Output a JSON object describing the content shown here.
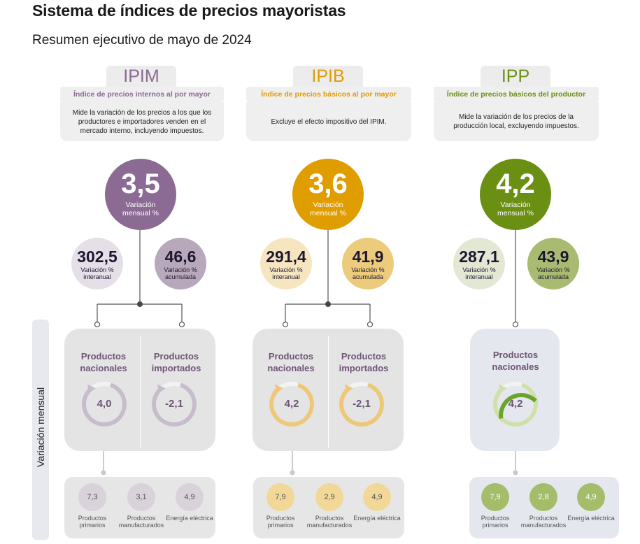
{
  "header": {
    "title": "Sistema de índices de precios mayoristas",
    "subtitle": "Resumen ejecutivo de mayo de 2024"
  },
  "side_label": "Variación mensual",
  "colors": {
    "ipim": "#8b6a93",
    "ipim_light": "#d7cfd9",
    "ipib": "#e09d00",
    "ipib_light": "#f0d79d",
    "ipp": "#6b8f12",
    "ipp_light": "#d1dfa6"
  },
  "indices": [
    {
      "code": "IPIM",
      "name": "Índice de precios internos al por mayor",
      "description": "Mide la variación de los precios a los que los productores e importadores venden en el mercado interno, incluyendo impuestos.",
      "monthly": {
        "value": "3,5",
        "label": "Variación mensual %"
      },
      "interannual": {
        "value": "302,5",
        "label": "Variación % interanual"
      },
      "accumulated": {
        "value": "46,6",
        "label": "Variación % acumulada"
      },
      "products": [
        {
          "label": "Productos nacionales",
          "value": "4,0",
          "fill": 0.55
        },
        {
          "label": "Productos importados",
          "value": "-2,1",
          "fill": 0.55
        }
      ],
      "breakdown": [
        {
          "value": "7,3",
          "label": "Productos primarios"
        },
        {
          "value": "3,1",
          "label": "Productos manufacturados"
        },
        {
          "value": "4,9",
          "label": "Energía eléctrica"
        }
      ]
    },
    {
      "code": "IPIB",
      "name": "Índice de precios básicos al por mayor",
      "description": "Excluye el efecto impositivo del IPIM.",
      "monthly": {
        "value": "3,6",
        "label": "Variación mensual %"
      },
      "interannual": {
        "value": "291,4",
        "label": "Variación % interanual"
      },
      "accumulated": {
        "value": "41,9",
        "label": "Variación % acumulada"
      },
      "products": [
        {
          "label": "Productos nacionales",
          "value": "4,2",
          "fill": 0.6
        },
        {
          "label": "Productos importados",
          "value": "-2,1",
          "fill": 0.55
        }
      ],
      "breakdown": [
        {
          "value": "7,9",
          "label": "Productos primarios"
        },
        {
          "value": "2,9",
          "label": "Productos manufacturados"
        },
        {
          "value": "4,9",
          "label": "Energía eléctrica"
        }
      ]
    },
    {
      "code": "IPP",
      "name": "Índice de precios básicos del productor",
      "description": "Mide la variación de los precios de la producción local, excluyendo impuestos.",
      "monthly": {
        "value": "4,2",
        "label": "Variación mensual %"
      },
      "interannual": {
        "value": "287,1",
        "label": "Variación % interanual"
      },
      "accumulated": {
        "value": "43,9",
        "label": "Variación % acumulada"
      },
      "products": [
        {
          "label": "Productos nacionales",
          "value": "4,2",
          "fill": 0.6
        }
      ],
      "breakdown": [
        {
          "value": "7,9",
          "label": "Productos primarios"
        },
        {
          "value": "2,8",
          "label": "Productos manufacturados"
        },
        {
          "value": "4,9",
          "label": "Energía eléctrica"
        }
      ]
    }
  ]
}
